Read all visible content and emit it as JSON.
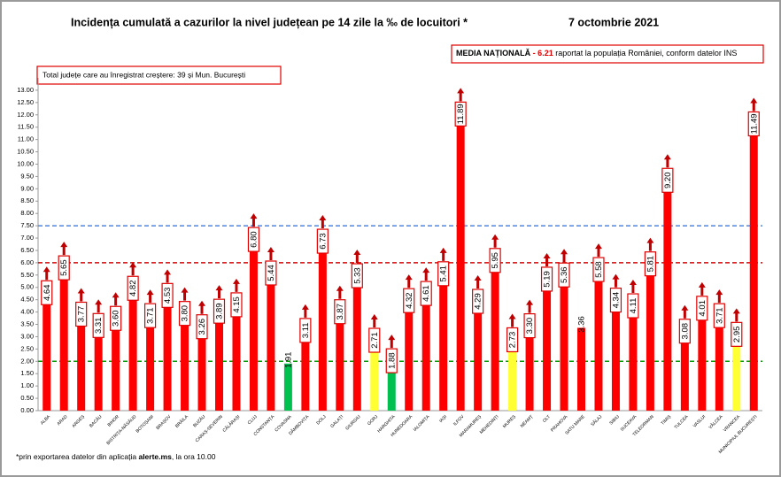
{
  "chart_data": {
    "type": "bar",
    "title": "Incidența cumulată a cazurilor la nivel județean pe 14 zile la ‰ de locuitori *",
    "date": "7 octombrie 2021",
    "increase_note": "Total județe care au înregistrat creștere:  39 și Mun. București",
    "national_average": {
      "label": "MEDIA NAȚIONALĂ",
      "value_text": "- 6.21",
      "note": "raportat la populația României, conform datelor INS"
    },
    "footnote": {
      "before": "*prin exportarea datelor din aplicația",
      "bold": "alerte.ms",
      "after": ", la ora 10.00"
    },
    "categories": [
      "ALBA",
      "ARAD",
      "ARGEȘ",
      "BACĂU",
      "BIHOR",
      "BISTRIȚA-NĂSĂUD",
      "BOTOȘANI",
      "BRAȘOV",
      "BRĂILA",
      "BUZĂU",
      "CARAȘ-SEVERIN",
      "CĂLĂRAȘI",
      "CLUJ",
      "CONSTANȚA",
      "COVASNA",
      "DÂMBOVIȚA",
      "DOLJ",
      "GALAȚI",
      "GIURGIU",
      "GORJ",
      "HARGHITA",
      "HUNEDOARA",
      "IALOMIȚA",
      "IAȘI",
      "ILFOV",
      "MARAMUREȘ",
      "MEHEDINȚI",
      "MUREȘ",
      "NEAMȚ",
      "OLT",
      "PRAHOVA",
      "SATU MARE",
      "SĂLAJ",
      "SIBIU",
      "SUCEAVA",
      "TELEORMAN",
      "TIMIȘ",
      "TULCEA",
      "VASLUI",
      "VÂLCEA",
      "VRANCEA",
      "MUNICIPIUL BUCUREȘTI"
    ],
    "values": [
      4.64,
      5.65,
      3.77,
      3.31,
      3.6,
      4.82,
      3.71,
      4.53,
      3.8,
      3.26,
      3.89,
      4.15,
      6.8,
      5.44,
      1.91,
      3.11,
      6.73,
      3.87,
      5.33,
      2.71,
      1.88,
      4.32,
      4.61,
      5.41,
      11.89,
      4.29,
      5.95,
      2.73,
      3.3,
      5.19,
      5.36,
      3.36,
      5.58,
      4.34,
      4.11,
      5.81,
      9.2,
      3.08,
      4.01,
      3.71,
      2.95,
      11.49
    ],
    "value_labels": [
      "4.64",
      "5.65",
      "3.77",
      "3.31",
      "3.60",
      "4.82",
      "3.71",
      "4.53",
      "3.80",
      "3.26",
      "3.89",
      "4.15",
      "6.80",
      "5.44",
      "1.91",
      "3.11",
      "6.73",
      "3.87",
      "5.33",
      "2.71",
      "1.88",
      "4.32",
      "4.61",
      "5.41",
      "11.89",
      "4.29",
      "5.95",
      "2.73",
      "3.30",
      "5.19",
      "5.36",
      "3.36",
      "5.58",
      "4.34",
      "4.11",
      "5.81",
      "9.20",
      "3.08",
      "4.01",
      "3.71",
      "2.95",
      "11.49"
    ],
    "colors": [
      "#ff0000",
      "#ff0000",
      "#ff0000",
      "#ff0000",
      "#ff0000",
      "#ff0000",
      "#ff0000",
      "#ff0000",
      "#ff0000",
      "#ff0000",
      "#ff0000",
      "#ff0000",
      "#ff0000",
      "#ff0000",
      "#00c050",
      "#ff0000",
      "#ff0000",
      "#ff0000",
      "#ff0000",
      "#ffff33",
      "#00c050",
      "#ff0000",
      "#ff0000",
      "#ff0000",
      "#ff0000",
      "#ff0000",
      "#ff0000",
      "#ffff33",
      "#ff0000",
      "#ff0000",
      "#ff0000",
      "#ff0000",
      "#ff0000",
      "#ff0000",
      "#ff0000",
      "#ff0000",
      "#ff0000",
      "#ff0000",
      "#ff0000",
      "#ff0000",
      "#ffff33",
      "#ff0000"
    ],
    "increase": [
      true,
      true,
      true,
      true,
      true,
      true,
      true,
      true,
      true,
      true,
      true,
      true,
      true,
      true,
      false,
      true,
      true,
      true,
      true,
      true,
      true,
      true,
      true,
      true,
      true,
      true,
      true,
      true,
      true,
      true,
      true,
      false,
      true,
      true,
      true,
      true,
      true,
      true,
      true,
      true,
      true,
      true
    ],
    "reference_lines": [
      {
        "value": 2,
        "color": "#00a000"
      },
      {
        "value": 6,
        "color": "#e00000"
      },
      {
        "value": 7.5,
        "color": "#4a86e8"
      }
    ],
    "ylim": [
      0,
      13.5
    ],
    "yticks": [
      {
        "value": 0,
        "label": "0.00"
      },
      {
        "value": 0.5,
        "label": "0.50"
      },
      {
        "value": 1,
        "label": "1.00"
      },
      {
        "value": 1.5,
        "label": "1.50"
      },
      {
        "value": 2,
        "label": "2.00"
      },
      {
        "value": 2.5,
        "label": "2.50"
      },
      {
        "value": 3,
        "label": "3.00"
      },
      {
        "value": 3.5,
        "label": "3.50"
      },
      {
        "value": 4,
        "label": "4.00"
      },
      {
        "value": 4.5,
        "label": "4.50"
      },
      {
        "value": 5,
        "label": "5.00"
      },
      {
        "value": 5.5,
        "label": "5.50"
      },
      {
        "value": 6,
        "label": "6.00"
      },
      {
        "value": 6.5,
        "label": "6.50"
      },
      {
        "value": 7,
        "label": "7.00"
      },
      {
        "value": 7.5,
        "label": "7.50"
      },
      {
        "value": 8,
        "label": "8.00"
      },
      {
        "value": 8.5,
        "label": "8.50"
      },
      {
        "value": 9,
        "label": "9.00"
      },
      {
        "value": 9.5,
        "label": "9.50"
      },
      {
        "value": 10,
        "label": "10.00"
      },
      {
        "value": 10.5,
        "label": "10.50"
      },
      {
        "value": 11,
        "label": "11.00"
      },
      {
        "value": 11.5,
        "label": "11.50"
      },
      {
        "value": 12,
        "label": "12.00"
      },
      {
        "value": 12.5,
        "label": "12.50"
      },
      {
        "value": 13,
        "label": "13.00"
      }
    ]
  }
}
